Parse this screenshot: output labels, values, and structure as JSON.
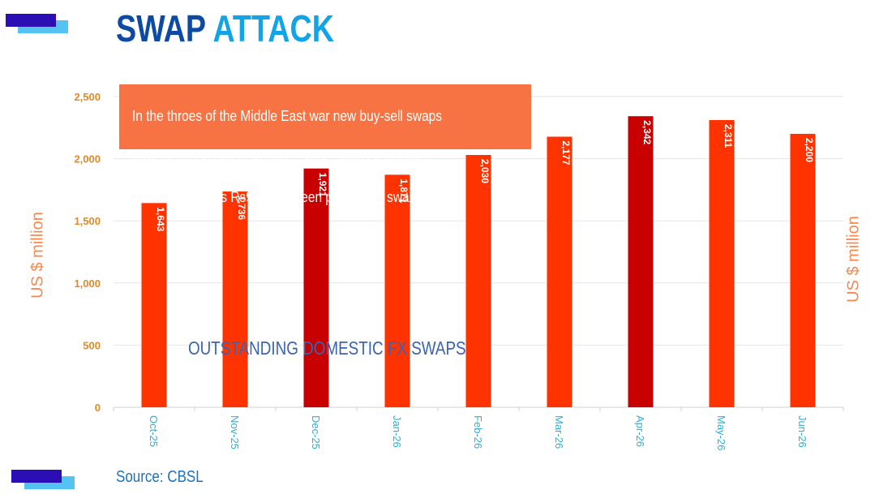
{
  "header": {
    "title_part1": "SWAP",
    "title_part2": "ATTACK"
  },
  "annotation": {
    "lines": [
      "In the throes of the Middle East war new buy-sell swaps",
      "have been executed. In June, some swaps  terminated.",
      "In the six months Rs9bn has been printed via swaps."
    ]
  },
  "chart_label": "OUTSTANDING DOMESTIC FX SWAPS",
  "source": "Source: CBSL",
  "colors": {
    "title_dark": "#0d4aa3",
    "title_light": "#12a4e6",
    "bar_normal": "#ff3300",
    "bar_highlight": "#c80000",
    "annotation_bg": "#f77343"
  },
  "chart_data": {
    "type": "bar",
    "categories": [
      "Oct-25",
      "Nov-25",
      "Dec-25",
      "Jan-26",
      "Feb-26",
      "Mar-26",
      "Apr-26",
      "May-26",
      "Jun-26"
    ],
    "values": [
      1643,
      1736,
      1921,
      1871,
      2030,
      2177,
      2342,
      2311,
      2200
    ],
    "value_labels": [
      "1,643",
      "1,736",
      "1,921",
      "1,871",
      "2,030",
      "2,177",
      "2,342",
      "2,311",
      "2,200"
    ],
    "highlighted": [
      "Dec-25",
      "Apr-26"
    ],
    "title": "",
    "xlabel": "",
    "ylabel": "US $ million",
    "ylabel_right": "US $ million",
    "ylim": [
      0,
      2500
    ],
    "yticks": [
      0,
      500,
      1000,
      1500,
      2000,
      2500
    ],
    "ytick_labels": [
      "0",
      "500",
      "1,000",
      "1,500",
      "2,000",
      "2,500"
    ],
    "grid": true,
    "legend": "none"
  }
}
